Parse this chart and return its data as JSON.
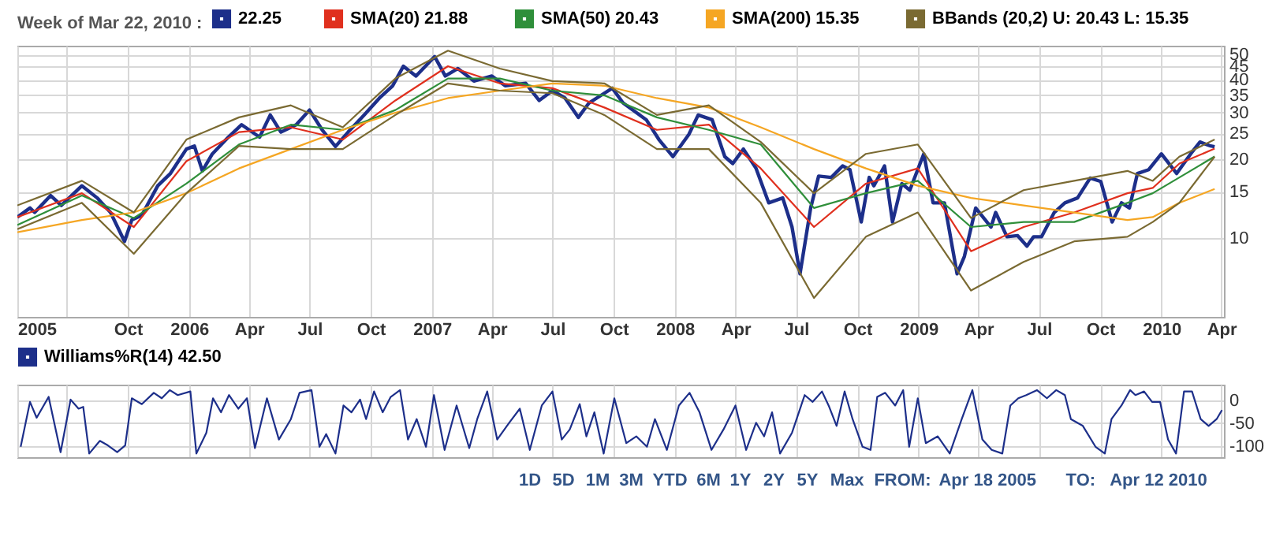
{
  "chart_data": [
    {
      "type": "line",
      "legend_title": "Week of Mar 22, 2010 :",
      "legend": "top",
      "grid": true,
      "log": true,
      "line_style": "solid",
      "xlim": [
        "2005-04-18",
        "2010-04-05"
      ],
      "xticks": [
        {
          "value": "2005-04-18",
          "label": "2005"
        },
        {
          "value": "2005-07-01",
          "label": null
        },
        {
          "value": "2005-10-01",
          "label": "Oct"
        },
        {
          "value": "2006-01-01",
          "label": "2006"
        },
        {
          "value": "2006-04-01",
          "label": "Apr"
        },
        {
          "value": "2006-07-01",
          "label": "Jul"
        },
        {
          "value": "2006-10-01",
          "label": "Oct"
        },
        {
          "value": "2007-01-01",
          "label": "2007"
        },
        {
          "value": "2007-04-01",
          "label": "Apr"
        },
        {
          "value": "2007-07-01",
          "label": "Jul"
        },
        {
          "value": "2007-10-01",
          "label": "Oct"
        },
        {
          "value": "2008-01-01",
          "label": "2008"
        },
        {
          "value": "2008-04-01",
          "label": "Apr"
        },
        {
          "value": "2008-07-01",
          "label": "Jul"
        },
        {
          "value": "2008-10-01",
          "label": "Oct"
        },
        {
          "value": "2009-01-01",
          "label": "2009"
        },
        {
          "value": "2009-04-01",
          "label": "Apr"
        },
        {
          "value": "2009-07-01",
          "label": "Jul"
        },
        {
          "value": "2009-10-01",
          "label": "Oct"
        },
        {
          "value": "2010-01-01",
          "label": "2010"
        },
        {
          "value": "2010-04-01",
          "label": "Apr"
        }
      ],
      "ylim": [
        5,
        54
      ],
      "yticks": [
        10,
        15,
        20,
        25,
        30,
        35,
        40,
        45,
        50
      ],
      "series": [
        {
          "name": "22.25",
          "color": "#1d2f8a",
          "x": [
            "2005-04-18",
            "2005-05-07",
            "2005-05-14",
            "2005-06-07",
            "2005-06-23",
            "2005-07-24",
            "2005-08-16",
            "2005-09-05",
            "2005-09-26",
            "2005-10-07",
            "2005-10-22",
            "2005-11-15",
            "2005-12-04",
            "2005-12-28",
            "2006-01-09",
            "2006-01-21",
            "2006-02-05",
            "2006-03-01",
            "2006-03-21",
            "2006-04-17",
            "2006-05-03",
            "2006-05-19",
            "2006-06-11",
            "2006-07-01",
            "2006-07-20",
            "2006-08-09",
            "2006-08-28",
            "2006-09-21",
            "2006-10-14",
            "2006-11-03",
            "2006-11-19",
            "2006-12-08",
            "2007-01-05",
            "2007-01-21",
            "2007-02-09",
            "2007-03-05",
            "2007-04-01",
            "2007-04-21",
            "2007-05-22",
            "2007-06-11",
            "2007-07-01",
            "2007-07-20",
            "2007-08-09",
            "2007-08-25",
            "2007-09-29",
            "2007-10-15",
            "2007-11-19",
            "2007-12-08",
            "2007-12-29",
            "2008-01-22",
            "2008-02-05",
            "2008-02-26",
            "2008-03-16",
            "2008-03-28",
            "2008-04-13",
            "2008-05-02",
            "2008-05-21",
            "2008-06-11",
            "2008-06-25",
            "2008-07-07",
            "2008-07-23",
            "2008-08-04",
            "2008-08-23",
            "2008-09-09",
            "2008-09-20",
            "2008-10-07",
            "2008-10-19",
            "2008-10-26",
            "2008-11-11",
            "2008-11-23",
            "2008-12-07",
            "2008-12-19",
            "2009-01-09",
            "2009-01-23",
            "2009-02-09",
            "2009-02-28",
            "2009-03-11",
            "2009-03-28",
            "2009-04-20",
            "2009-04-27",
            "2009-05-14",
            "2009-05-30",
            "2009-06-13",
            "2009-06-23",
            "2009-07-05",
            "2009-07-24",
            "2009-08-09",
            "2009-08-28",
            "2009-09-16",
            "2009-10-02",
            "2009-10-19",
            "2009-11-02",
            "2009-11-14",
            "2009-11-26",
            "2009-12-13",
            "2010-01-01",
            "2010-01-24",
            "2010-02-14",
            "2010-02-28",
            "2010-03-16",
            "2010-03-22"
          ],
          "values": [
            12.0,
            13.0,
            12.5,
            14.5,
            13.3,
            15.8,
            14.2,
            12.5,
            9.7,
            11.7,
            12.2,
            15.8,
            17.6,
            21.8,
            22.4,
            18.0,
            20.9,
            24.2,
            27.0,
            24.2,
            29.4,
            25.3,
            27.0,
            30.7,
            25.8,
            22.3,
            25.3,
            29.4,
            34.1,
            38.0,
            45.1,
            41.4,
            49.1,
            41.4,
            44.2,
            39.6,
            41.4,
            38.0,
            38.8,
            33.4,
            36.4,
            34.1,
            28.8,
            32.7,
            37.2,
            32.7,
            28.2,
            23.7,
            20.4,
            24.8,
            29.4,
            28.2,
            20.4,
            19.2,
            21.8,
            18.4,
            13.6,
            14.2,
            11.0,
            7.3,
            13.0,
            17.2,
            17.0,
            18.8,
            18.2,
            11.5,
            17.0,
            15.8,
            18.8,
            11.5,
            16.1,
            15.2,
            20.9,
            13.6,
            13.6,
            7.3,
            8.5,
            13.0,
            11.0,
            12.5,
            10.1,
            10.2,
            9.3,
            10.1,
            10.1,
            12.5,
            13.6,
            14.2,
            16.9,
            16.4,
            11.5,
            13.6,
            13.0,
            17.6,
            18.2,
            20.9,
            17.6,
            20.9,
            23.2,
            22.4,
            22.25
          ]
        },
        {
          "name": "SMA(20)  21.88",
          "color": "#e0301e",
          "x": [
            "2005-04-18",
            "2005-07-24",
            "2005-10-10",
            "2005-12-28",
            "2006-03-17",
            "2006-06-03",
            "2006-08-20",
            "2006-11-07",
            "2007-01-25",
            "2007-04-13",
            "2007-07-01",
            "2007-09-17",
            "2007-12-05",
            "2008-02-21",
            "2008-05-09",
            "2008-07-28",
            "2008-10-14",
            "2008-12-31",
            "2009-03-21",
            "2009-06-08",
            "2009-08-23",
            "2009-11-11",
            "2009-12-19",
            "2010-01-28",
            "2010-03-22"
          ],
          "values": [
            12.0,
            14.8,
            11.0,
            19.6,
            25.3,
            26.4,
            23.7,
            33.4,
            45.1,
            38.8,
            37.2,
            31.4,
            25.8,
            27.0,
            18.4,
            11.0,
            16.1,
            18.4,
            8.9,
            11.0,
            12.5,
            14.8,
            15.5,
            19.2,
            21.88
          ]
        },
        {
          "name": "SMA(50)  20.43",
          "color": "#2f8f3a",
          "x": [
            "2005-04-18",
            "2005-07-24",
            "2005-10-10",
            "2005-12-28",
            "2006-03-17",
            "2006-06-03",
            "2006-08-20",
            "2006-11-07",
            "2007-01-25",
            "2007-04-13",
            "2007-07-01",
            "2007-09-17",
            "2007-12-05",
            "2008-02-21",
            "2008-05-09",
            "2008-07-28",
            "2008-10-14",
            "2008-12-31",
            "2009-03-21",
            "2009-06-08",
            "2009-08-23",
            "2009-11-11",
            "2009-12-19",
            "2010-01-28",
            "2010-03-22"
          ],
          "values": [
            11.2,
            14.5,
            11.9,
            16.1,
            22.7,
            27.0,
            25.8,
            30.7,
            40.5,
            40.5,
            36.4,
            34.9,
            28.8,
            25.8,
            22.7,
            13.0,
            14.8,
            16.5,
            11.0,
            11.5,
            11.5,
            13.6,
            14.8,
            17.0,
            20.43
          ]
        },
        {
          "name": "SMA(200)  15.35",
          "color": "#f5a623",
          "x": [
            "2005-04-18",
            "2005-07-24",
            "2005-10-10",
            "2005-12-28",
            "2006-03-17",
            "2006-06-03",
            "2006-08-20",
            "2006-11-07",
            "2007-01-25",
            "2007-04-13",
            "2007-07-01",
            "2007-09-17",
            "2007-12-05",
            "2008-02-21",
            "2008-05-09",
            "2008-07-28",
            "2008-10-14",
            "2008-12-31",
            "2009-03-21",
            "2009-06-08",
            "2009-08-23",
            "2009-11-11",
            "2009-12-19",
            "2010-01-28",
            "2010-03-22"
          ],
          "values": [
            10.5,
            11.7,
            12.5,
            14.8,
            18.4,
            21.8,
            25.8,
            30.0,
            34.1,
            36.4,
            38.8,
            38.0,
            34.1,
            31.4,
            26.4,
            21.8,
            18.4,
            15.8,
            14.2,
            13.3,
            12.5,
            11.7,
            12.0,
            13.6,
            15.35
          ]
        },
        {
          "name": "BBands (20,2)  U: 20.43  L: 15.35",
          "color": "#7a6a32",
          "x": [
            "2005-04-18",
            "2005-07-24",
            "2005-10-10",
            "2005-12-28",
            "2006-03-17",
            "2006-06-03",
            "2006-08-20",
            "2006-11-07",
            "2007-01-25",
            "2007-04-13",
            "2007-07-01",
            "2007-09-17",
            "2007-12-05",
            "2008-02-21",
            "2008-05-09",
            "2008-07-28",
            "2008-10-14",
            "2008-12-31",
            "2009-03-21",
            "2009-06-08",
            "2009-08-23",
            "2009-11-11",
            "2009-12-19",
            "2010-01-28",
            "2010-03-22"
          ],
          "values": [
            13.3,
            16.5,
            12.5,
            23.7,
            28.8,
            32.0,
            26.4,
            40.5,
            51.7,
            44.2,
            39.6,
            38.8,
            29.4,
            32.0,
            23.2,
            14.8,
            20.9,
            22.7,
            11.9,
            15.2,
            16.5,
            18.0,
            16.5,
            20.4,
            23.7
          ]
        },
        {
          "color": "#7a6a32",
          "x": [
            "2005-04-18",
            "2005-07-24",
            "2005-10-10",
            "2005-12-28",
            "2006-03-17",
            "2006-06-03",
            "2006-08-20",
            "2006-11-07",
            "2007-01-25",
            "2007-04-13",
            "2007-07-01",
            "2007-09-17",
            "2007-12-05",
            "2008-02-21",
            "2008-05-09",
            "2008-07-28",
            "2008-10-14",
            "2008-12-31",
            "2009-03-21",
            "2009-06-08",
            "2009-08-23",
            "2009-11-11",
            "2009-12-19",
            "2010-01-28",
            "2010-03-22"
          ],
          "values": [
            10.8,
            13.6,
            8.7,
            14.8,
            22.4,
            21.8,
            21.8,
            29.4,
            38.8,
            36.4,
            35.6,
            29.4,
            21.8,
            21.8,
            13.6,
            5.9,
            10.1,
            12.5,
            6.3,
            8.1,
            9.7,
            10.1,
            11.5,
            13.6,
            20.4
          ]
        }
      ]
    },
    {
      "type": "line",
      "legend": "top left",
      "grid": true,
      "line_style": "solid",
      "tick_labels": "y",
      "xlim": [
        "2005-04-18",
        "2010-04-05"
      ],
      "xticks": [
        {
          "value": "2005-04-18",
          "label": null
        },
        {
          "value": "2005-07-01",
          "label": null
        },
        {
          "value": "2005-10-01",
          "label": null
        },
        {
          "value": "2006-01-01",
          "label": null
        },
        {
          "value": "2006-04-01",
          "label": null
        },
        {
          "value": "2006-07-01",
          "label": null
        },
        {
          "value": "2006-10-01",
          "label": null
        },
        {
          "value": "2007-01-01",
          "label": null
        },
        {
          "value": "2007-04-01",
          "label": null
        },
        {
          "value": "2007-07-01",
          "label": null
        },
        {
          "value": "2007-10-01",
          "label": null
        },
        {
          "value": "2008-01-01",
          "label": null
        },
        {
          "value": "2008-04-01",
          "label": null
        },
        {
          "value": "2008-07-01",
          "label": null
        },
        {
          "value": "2008-10-01",
          "label": null
        },
        {
          "value": "2009-01-01",
          "label": null
        },
        {
          "value": "2009-04-01",
          "label": null
        },
        {
          "value": "2009-07-01",
          "label": null
        },
        {
          "value": "2009-10-01",
          "label": null
        },
        {
          "value": "2010-01-01",
          "label": null
        },
        {
          "value": "2010-04-01",
          "label": null
        }
      ],
      "ylim": [
        -125,
        35
      ],
      "yticks": [
        0,
        -50,
        -100
      ],
      "annotations": [
        "1D",
        "5D",
        "1M",
        "3M",
        "YTD",
        "6M",
        "1Y",
        "2Y",
        "5Y",
        "Max",
        "FROM:",
        "Apr 18 2005",
        "TO:",
        "Apr 12 2010"
      ],
      "series": [
        {
          "name": "Williams%R(14)  42.50",
          "color": "#1d2f8a",
          "x": [
            "2005-04-23",
            "2005-05-07",
            "2005-05-17",
            "2005-06-04",
            "2005-06-22",
            "2005-07-07",
            "2005-07-19",
            "2005-07-26",
            "2005-08-04",
            "2005-08-20",
            "2005-09-01",
            "2005-09-15",
            "2005-09-27",
            "2005-10-07",
            "2005-10-22",
            "2005-11-09",
            "2005-11-21",
            "2005-12-03",
            "2005-12-15",
            "2006-01-03",
            "2006-01-12",
            "2006-01-27",
            "2006-02-06",
            "2006-02-18",
            "2006-03-02",
            "2006-03-16",
            "2006-03-29",
            "2006-04-10",
            "2006-04-28",
            "2006-05-16",
            "2006-06-03",
            "2006-06-16",
            "2006-07-04",
            "2006-07-16",
            "2006-07-26",
            "2006-08-09",
            "2006-08-21",
            "2006-09-02",
            "2006-09-15",
            "2006-09-24",
            "2006-10-06",
            "2006-10-19",
            "2006-10-31",
            "2006-11-14",
            "2006-11-26",
            "2006-12-09",
            "2006-12-23",
            "2007-01-04",
            "2007-01-20",
            "2007-02-07",
            "2007-02-26",
            "2007-03-10",
            "2007-03-25",
            "2007-04-09",
            "2007-04-27",
            "2007-05-13",
            "2007-05-28",
            "2007-06-15",
            "2007-07-01",
            "2007-07-15",
            "2007-07-27",
            "2007-08-11",
            "2007-08-21",
            "2007-09-02",
            "2007-09-16",
            "2007-10-02",
            "2007-10-20",
            "2007-11-04",
            "2007-11-20",
            "2007-12-02",
            "2007-12-20",
            "2008-01-07",
            "2008-01-23",
            "2008-02-07",
            "2008-02-25",
            "2008-03-14",
            "2008-04-01",
            "2008-04-17",
            "2008-05-02",
            "2008-05-14",
            "2008-05-26",
            "2008-06-07",
            "2008-06-25",
            "2008-07-14",
            "2008-07-26",
            "2008-08-09",
            "2008-08-19",
            "2008-08-31",
            "2008-09-12",
            "2008-09-24",
            "2008-10-09",
            "2008-10-21",
            "2008-10-31",
            "2008-11-12",
            "2008-11-27",
            "2008-12-09",
            "2008-12-18",
            "2008-12-31",
            "2009-01-12",
            "2009-01-30",
            "2009-02-17",
            "2009-03-07",
            "2009-03-23",
            "2009-04-07",
            "2009-04-21",
            "2009-05-07",
            "2009-05-19",
            "2009-05-31",
            "2009-06-12",
            "2009-06-28",
            "2009-07-13",
            "2009-07-27",
            "2009-08-09",
            "2009-08-18",
            "2009-09-05",
            "2009-09-24",
            "2009-10-08",
            "2009-10-18",
            "2009-11-02",
            "2009-11-15",
            "2009-11-23",
            "2009-12-06",
            "2009-12-18",
            "2009-12-30",
            "2010-01-11",
            "2010-01-23",
            "2010-02-04",
            "2010-02-16",
            "2010-03-01",
            "2010-03-13",
            "2010-03-25",
            "2010-04-02"
          ],
          "values": [
            -102,
            -3,
            -38,
            8,
            -114,
            2,
            -18,
            -14,
            -117,
            -89,
            -99,
            -114,
            -99,
            5,
            -8,
            17,
            5,
            23,
            12,
            20,
            -117,
            -71,
            5,
            -26,
            12,
            -18,
            5,
            -105,
            5,
            -86,
            -41,
            17,
            23,
            -102,
            -74,
            -117,
            -11,
            -26,
            2,
            -41,
            20,
            -26,
            8,
            23,
            -86,
            -41,
            -102,
            12,
            -109,
            -11,
            -105,
            -41,
            20,
            -86,
            -49,
            -18,
            -109,
            -11,
            20,
            -86,
            -64,
            -8,
            -79,
            -26,
            -117,
            5,
            -94,
            -79,
            -102,
            -41,
            -109,
            -11,
            17,
            -26,
            -109,
            -64,
            -11,
            -109,
            -49,
            -79,
            -26,
            -117,
            -71,
            12,
            -3,
            20,
            -11,
            -56,
            20,
            -41,
            -102,
            -109,
            8,
            17,
            -11,
            23,
            -102,
            5,
            -94,
            -79,
            -117,
            -41,
            23,
            -86,
            -109,
            -117,
            -11,
            5,
            12,
            23,
            5,
            23,
            12,
            -41,
            -56,
            -102,
            -117,
            -41,
            -11,
            23,
            12,
            20,
            -3,
            -3,
            -86,
            -117,
            20,
            20,
            -41,
            -56,
            -41,
            -21
          ]
        }
      ]
    }
  ]
}
